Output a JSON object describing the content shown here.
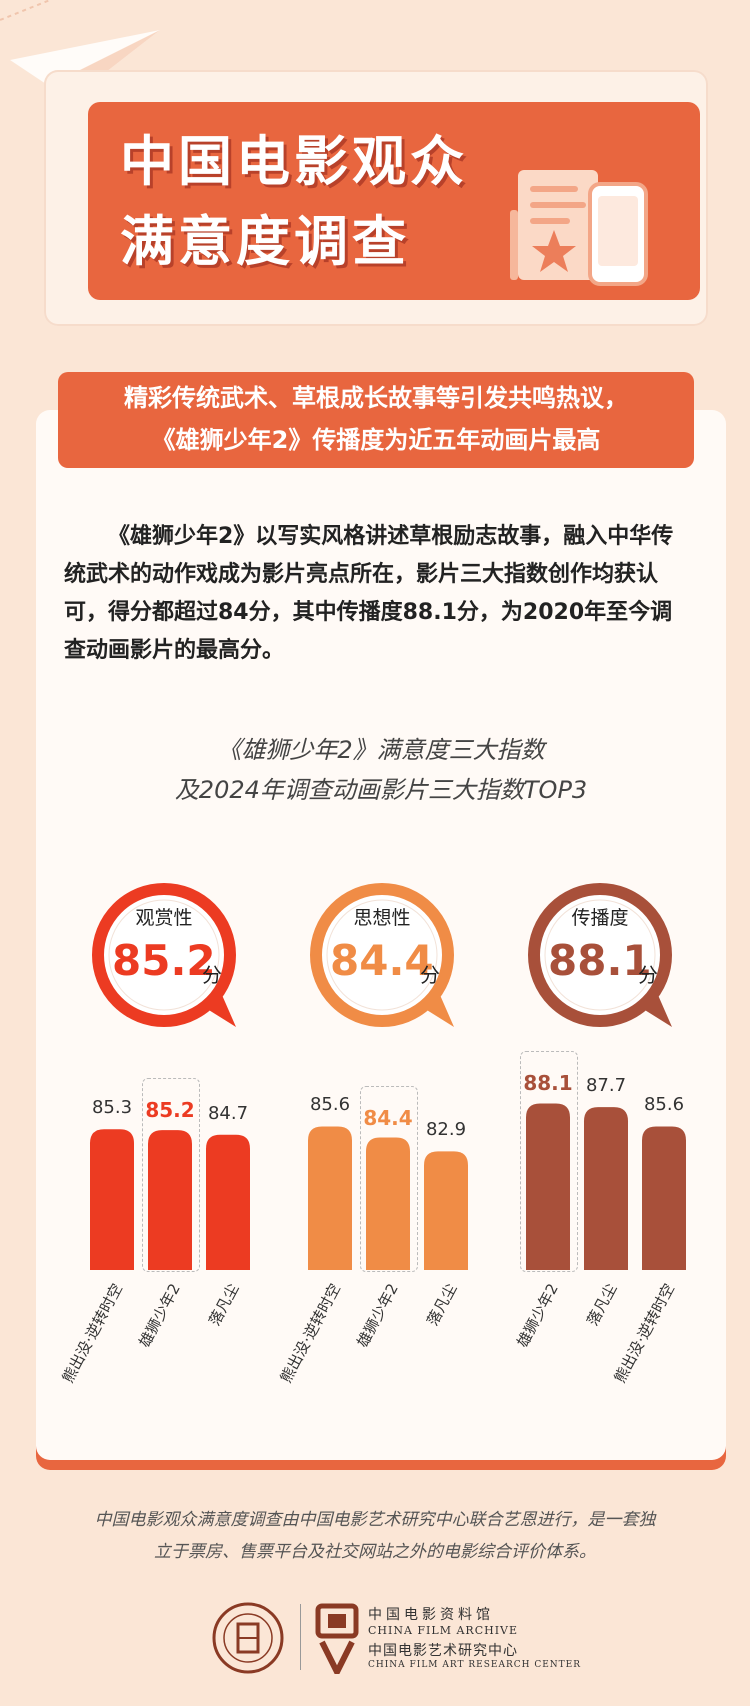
{
  "header": {
    "title_line1": "中国电影观众",
    "title_line2": "满意度调查"
  },
  "subtitle": {
    "line1": "精彩传统武术、草根成长故事等引发共鸣热议，",
    "line2": "《雄狮少年2》传播度为近五年动画片最高"
  },
  "intro": "《雄狮少年2》以写实风格讲述草根励志故事，融入中华传统武术的动作戏成为影片亮点所在，影片三大指数创作均获认可，得分都超过84分，其中传播度88.1分，为2020年至今调查动画影片的最高分。",
  "chart_title": {
    "line1": "《雄狮少年2》满意度三大指数",
    "line2": "及2024年调查动画影片三大指数TOP3"
  },
  "chart_data": [
    {
      "type": "bar",
      "title": "观赏性",
      "headline_score": "85.2",
      "unit": "分",
      "color": "#ec3b22",
      "categories": [
        "熊出没·逆转时空",
        "雄狮少年2",
        "落凡尘"
      ],
      "values": [
        85.3,
        85.2,
        84.7
      ],
      "highlight_index": 1
    },
    {
      "type": "bar",
      "title": "思想性",
      "headline_score": "84.4",
      "unit": "分",
      "color": "#f08c46",
      "categories": [
        "熊出没·逆转时空",
        "雄狮少年2",
        "落凡尘"
      ],
      "values": [
        85.6,
        84.4,
        82.9
      ],
      "highlight_index": 1
    },
    {
      "type": "bar",
      "title": "传播度",
      "headline_score": "88.1",
      "unit": "分",
      "color": "#a8503a",
      "categories": [
        "雄狮少年2",
        "落凡尘",
        "熊出没·逆转时空"
      ],
      "values": [
        88.1,
        87.7,
        85.6
      ],
      "highlight_index": 0
    }
  ],
  "footnote": {
    "line1": "中国电影观众满意度调查由中国电影艺术研究中心联合艺恩进行，是一套独",
    "line2": "立于票房、售票平台及社交网站之外的电影综合评价体系。"
  },
  "logo": {
    "cn_archive": "中国电影资料馆",
    "en_archive": "CHINA FILM ARCHIVE",
    "cn_center": "中国电影艺术研究中心",
    "en_center": "CHINA FILM ART RESEARCH CENTER"
  }
}
